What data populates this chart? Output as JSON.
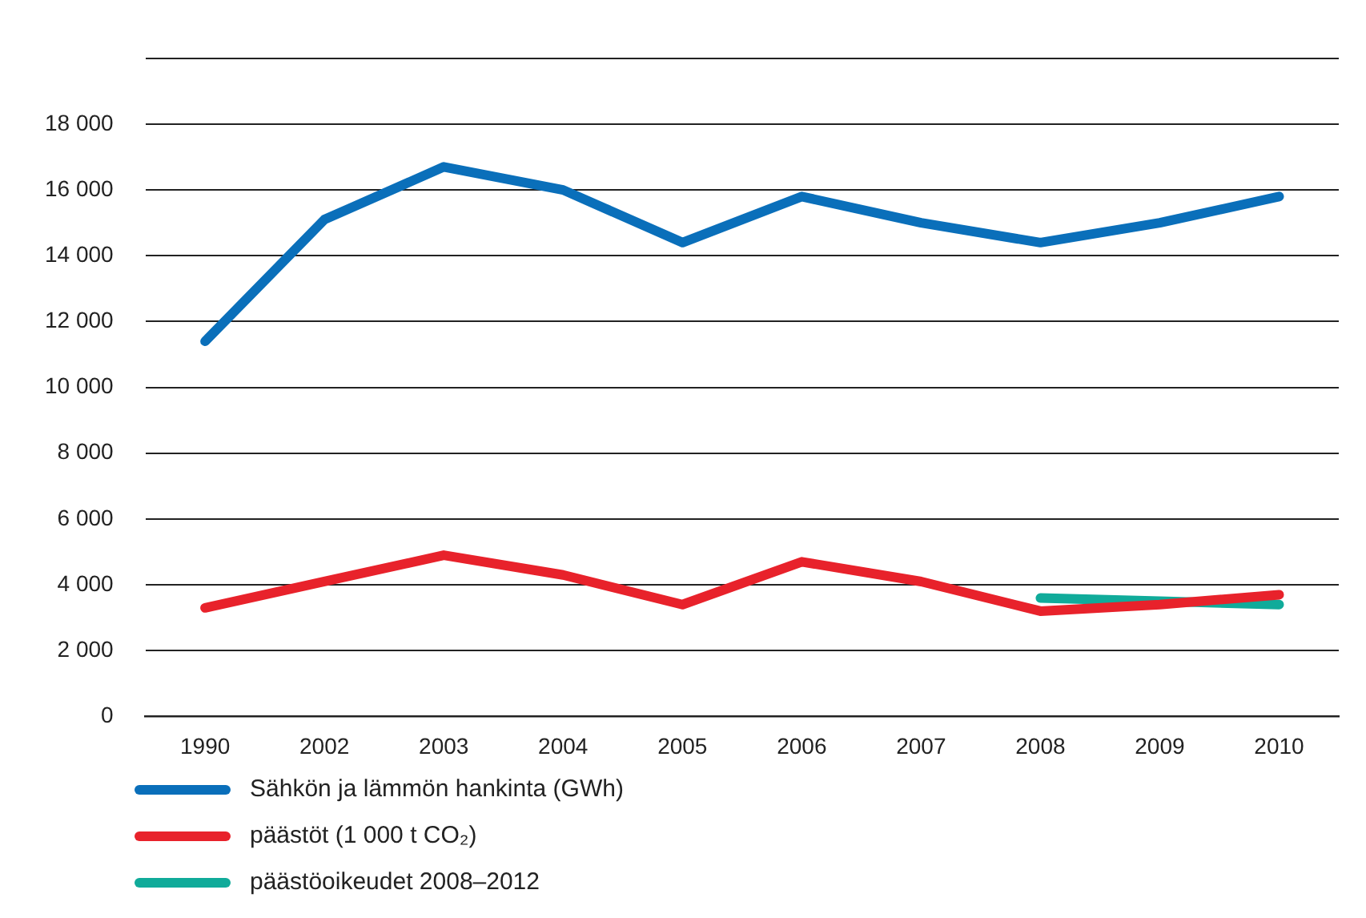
{
  "chart_data": {
    "type": "line",
    "categories": [
      "1990",
      "2002",
      "2003",
      "2004",
      "2005",
      "2006",
      "2007",
      "2008",
      "2009",
      "2010"
    ],
    "ylim": [
      0,
      20000
    ],
    "yticks": [
      {
        "value": 0,
        "label": "0"
      },
      {
        "value": 2000,
        "label": "2 000"
      },
      {
        "value": 4000,
        "label": "4 000"
      },
      {
        "value": 6000,
        "label": "6 000"
      },
      {
        "value": 8000,
        "label": "8 000"
      },
      {
        "value": 10000,
        "label": "10 000"
      },
      {
        "value": 12000,
        "label": "12 000"
      },
      {
        "value": 14000,
        "label": "14 000"
      },
      {
        "value": 16000,
        "label": "16 000"
      },
      {
        "value": 18000,
        "label": "18 000"
      },
      {
        "value": 20000,
        "label": null
      }
    ],
    "grid": "y",
    "legend": "bottom",
    "marker": "none",
    "line_style": "solid",
    "series": [
      {
        "name": "Sähkön ja lämmön hankinta (GWh)",
        "color": "#0a6fba",
        "values": [
          11400,
          15100,
          16700,
          16000,
          14400,
          15800,
          15000,
          14400,
          15000,
          15800
        ]
      },
      {
        "name": "päästöt (1 000 t CO₂)",
        "color": "#e8222b",
        "values": [
          3300,
          4100,
          4900,
          4300,
          3400,
          4700,
          4100,
          3200,
          3400,
          3700
        ]
      },
      {
        "name": "päästöoikeudet 2008–2012",
        "color": "#10ab9a",
        "values": [
          null,
          null,
          null,
          null,
          null,
          null,
          null,
          3600,
          3500,
          3400
        ]
      }
    ]
  }
}
